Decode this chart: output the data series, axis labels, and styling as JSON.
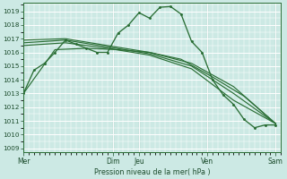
{
  "bg_color": "#cce9e4",
  "grid_color": "#ffffff",
  "line_color": "#2a6e35",
  "xlabel": "Pression niveau de la mer( hPa )",
  "ylim_min": 1008.7,
  "ylim_max": 1019.6,
  "yticks": [
    1009,
    1010,
    1011,
    1012,
    1013,
    1014,
    1015,
    1016,
    1017,
    1018,
    1019
  ],
  "day_labels": [
    "Mer",
    "Dim",
    "Jeu",
    "Ven",
    "Sam"
  ],
  "day_positions": [
    0.0,
    8.5,
    11.0,
    17.5,
    24.0
  ],
  "xlim": [
    0,
    24.5
  ],
  "series_main_x": [
    0,
    1,
    2,
    3,
    4,
    5,
    6,
    7,
    8,
    9,
    10,
    11,
    12,
    13,
    14,
    15,
    16,
    17,
    18,
    19,
    20,
    21,
    22,
    23,
    24
  ],
  "series_main_y": [
    1013.0,
    1014.7,
    1015.2,
    1016.0,
    1016.9,
    1016.6,
    1016.3,
    1016.0,
    1016.0,
    1017.4,
    1018.0,
    1018.9,
    1018.5,
    1019.3,
    1019.35,
    1018.8,
    1016.8,
    1016.0,
    1014.0,
    1012.9,
    1012.2,
    1011.1,
    1010.5,
    1010.7,
    1010.7
  ],
  "series_a_x": [
    0,
    4,
    8,
    12,
    16,
    20,
    24
  ],
  "series_a_y": [
    1016.9,
    1017.0,
    1016.5,
    1016.0,
    1015.2,
    1013.5,
    1010.8
  ],
  "series_b_x": [
    0,
    4,
    8,
    12,
    16,
    20,
    24
  ],
  "series_b_y": [
    1016.7,
    1016.9,
    1016.4,
    1015.9,
    1015.0,
    1013.0,
    1010.8
  ],
  "series_c_x": [
    0,
    4,
    8,
    12,
    16,
    20,
    24
  ],
  "series_c_y": [
    1016.5,
    1016.7,
    1016.3,
    1015.8,
    1014.8,
    1012.5,
    1010.8
  ],
  "series_d_x": [
    0,
    3,
    6,
    9,
    12,
    15,
    18,
    21,
    24
  ],
  "series_d_y": [
    1013.0,
    1016.2,
    1016.3,
    1016.2,
    1016.0,
    1015.5,
    1014.2,
    1012.8,
    1010.8
  ],
  "vline_color": "#5a7a60",
  "vline_alpha": 0.7
}
